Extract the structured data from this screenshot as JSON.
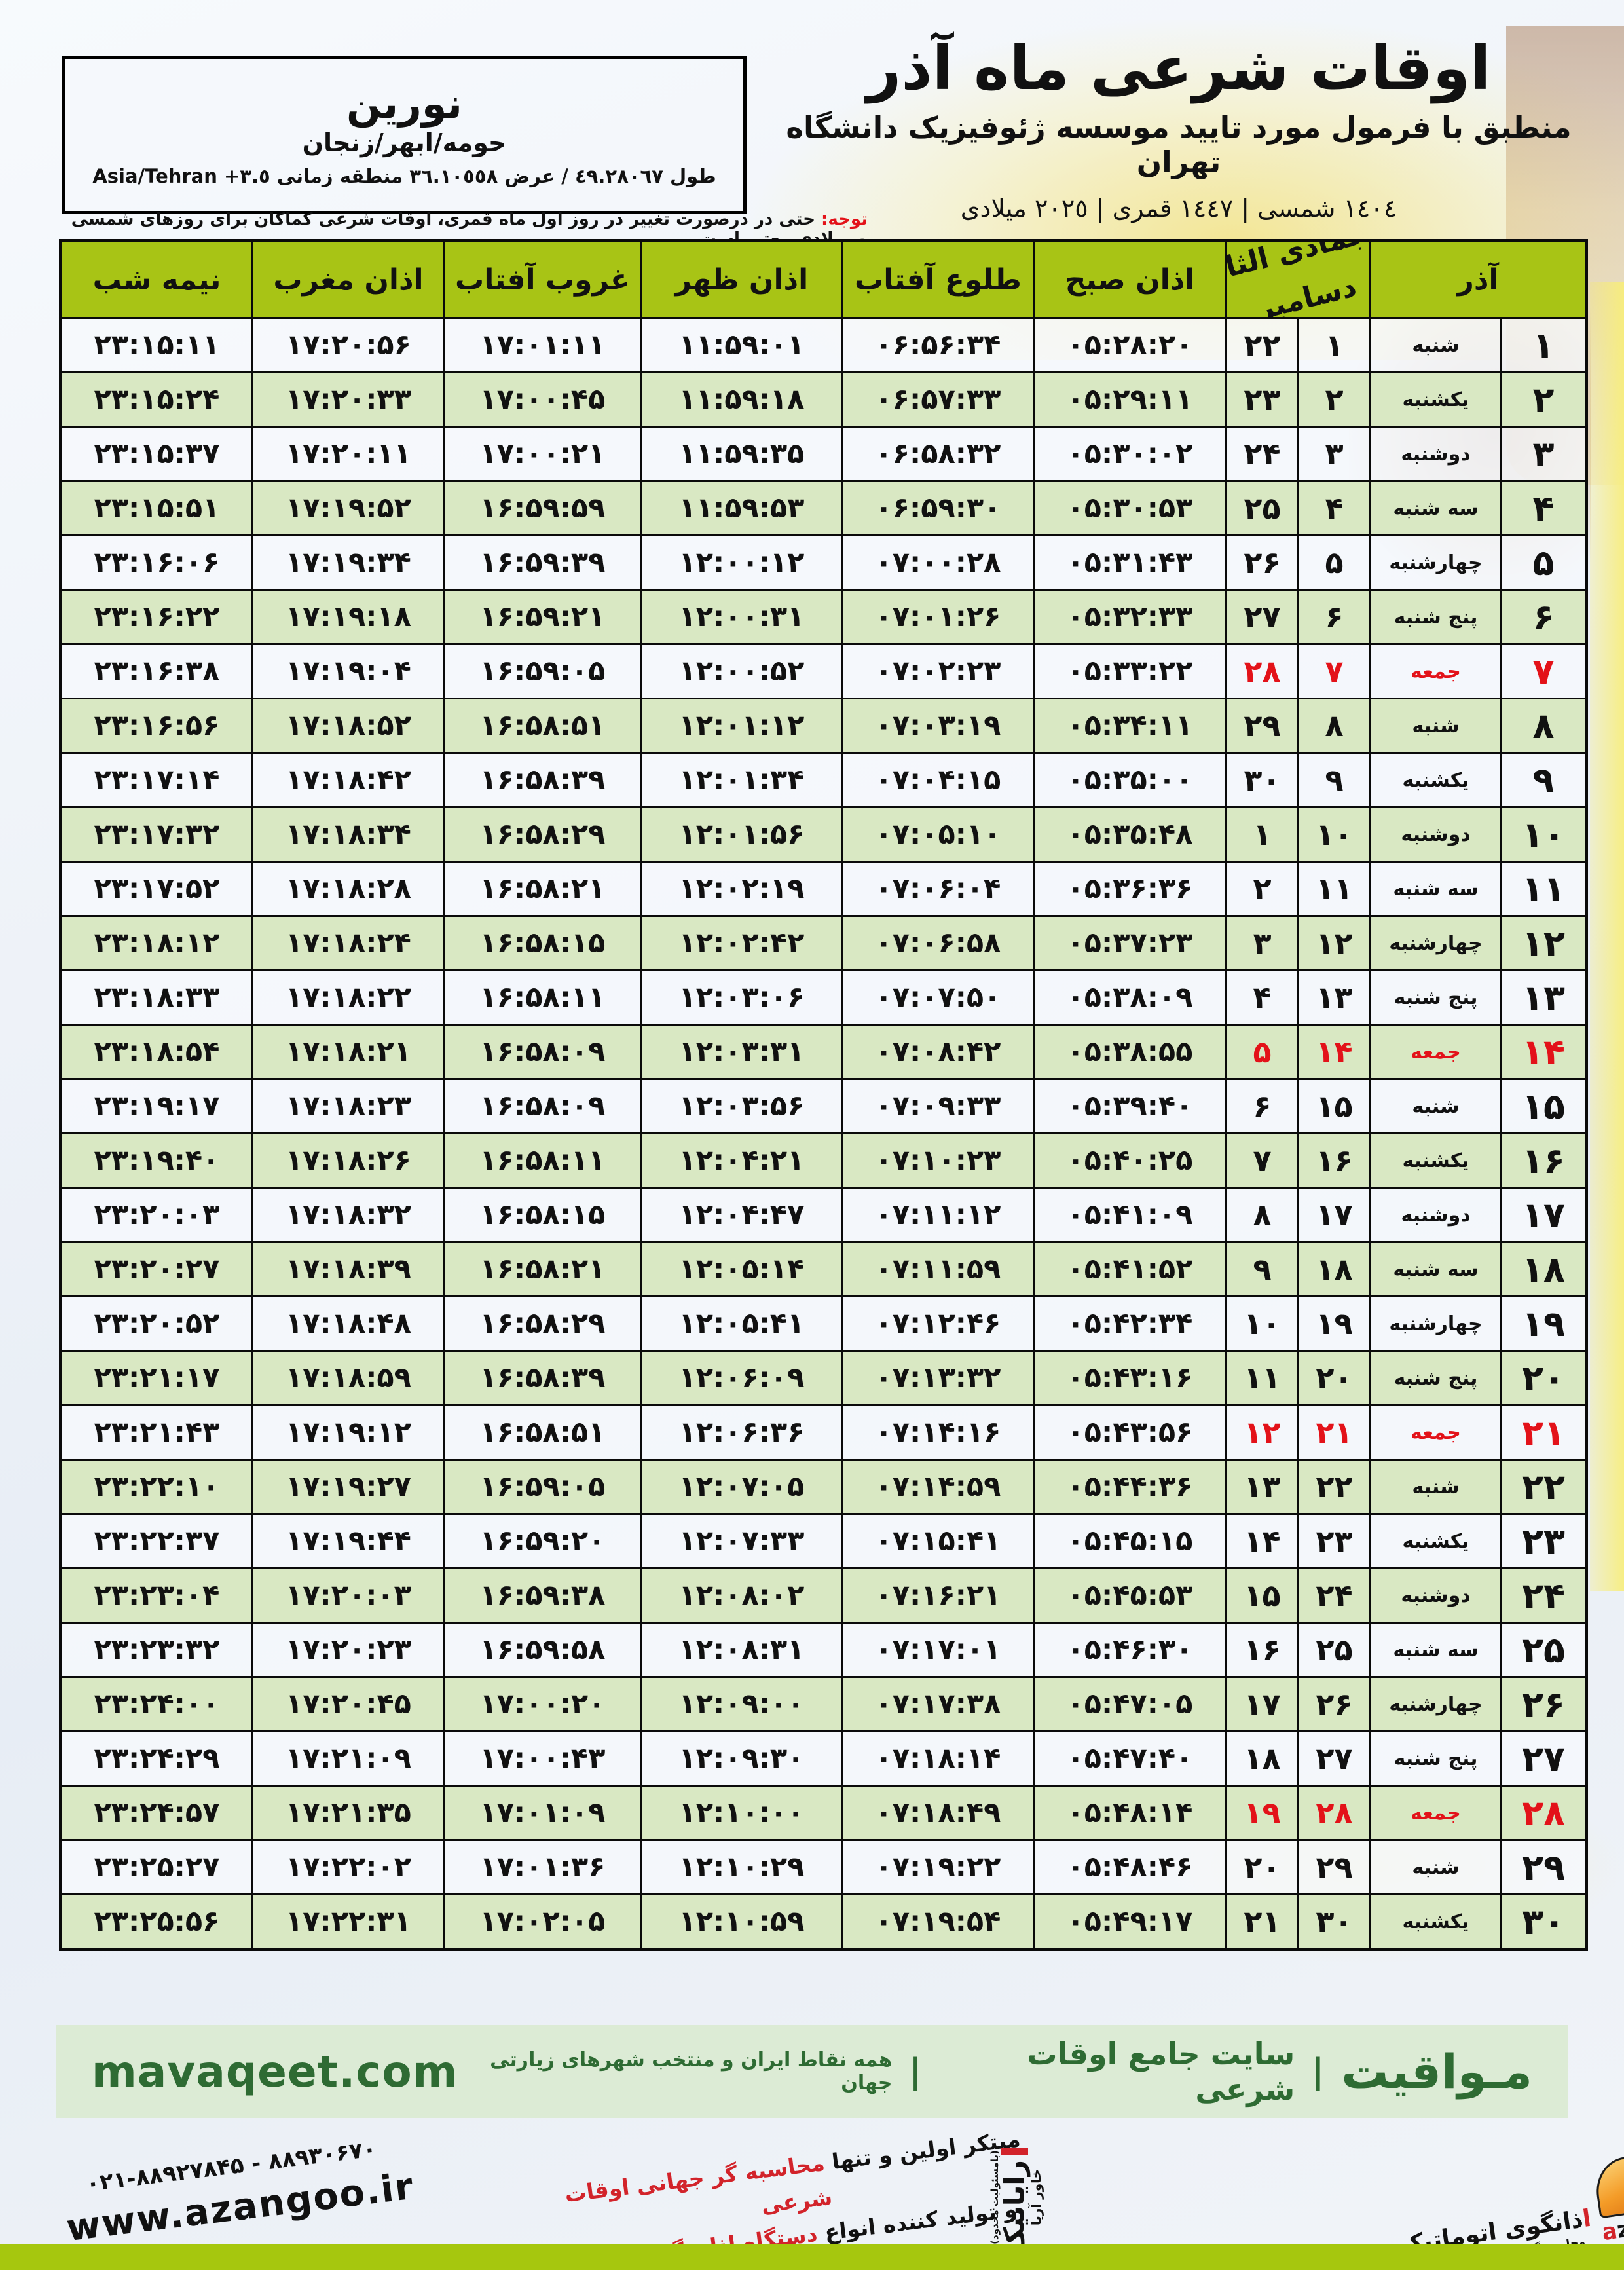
{
  "colors": {
    "header_green": "#a8c415",
    "row_green": "#d9e8c3",
    "holiday_red": "#e31219",
    "footer_bg": "#dcebd5",
    "footer_text_green": "#2e6b33",
    "bottom_bar_green": "#a6c70e",
    "azangoo_orange": "#f49c28",
    "slogan_red": "#d2232a"
  },
  "location_box": {
    "city": "نورین",
    "region": "حومه/ابهر/زنجان",
    "coords_fa": "طول ٤٩.٢٨٠٦٧ / عرض ٣٦.١٠٥٥٨ منطقه زمانی",
    "coords_tz": "Asia/Tehran +٣.٥"
  },
  "title": {
    "main": "اوقات شرعی ماه آذر",
    "subtitle": "منطبق با فرمول مورد تایید موسسه ژئوفیزیک دانشگاه تهران",
    "years": "١٤٠٤ شمسی | ١٤٤٧ قمری | ٢٠٢٥ میلادی"
  },
  "notice": {
    "label": "توجه:",
    "text": " حتی در درصورت تغییر در روز اول ماه قمری، اوقات شرعی کماکان برای روزهای شمسی و میلادی معتبر است."
  },
  "table": {
    "headers": {
      "month": "آذر",
      "lunar_line": "جمادی الثانی نوامبر",
      "greg_bottom": "دسامبر",
      "sobh": "اذان صبح",
      "tolu": "طلوع آفتاب",
      "zohr": "اذان ظهر",
      "ghorub": "غروب آفتاب",
      "maghreb": "اذان مغرب",
      "nimeshab": "نیمه شب"
    },
    "columns_order": [
      "day",
      "weekday",
      "lunar",
      "greg",
      "sobh",
      "tolu",
      "zohr",
      "ghorub",
      "maghreb",
      "nimeshab"
    ],
    "rows": [
      {
        "day": "۱",
        "weekday": "شنبه",
        "lunar": "۱",
        "greg": "۲۲",
        "sobh": "۰۵:۲۸:۲۰",
        "tolu": "۰۶:۵۶:۳۴",
        "zohr": "۱۱:۵۹:۰۱",
        "ghorub": "۱۷:۰۱:۱۱",
        "maghreb": "۱۷:۲۰:۵۶",
        "nimeshab": "۲۳:۱۵:۱۱",
        "holiday": false
      },
      {
        "day": "۲",
        "weekday": "یکشنبه",
        "lunar": "۲",
        "greg": "۲۳",
        "sobh": "۰۵:۲۹:۱۱",
        "tolu": "۰۶:۵۷:۳۳",
        "zohr": "۱۱:۵۹:۱۸",
        "ghorub": "۱۷:۰۰:۴۵",
        "maghreb": "۱۷:۲۰:۳۳",
        "nimeshab": "۲۳:۱۵:۲۴",
        "holiday": false
      },
      {
        "day": "۳",
        "weekday": "دوشنبه",
        "lunar": "۳",
        "greg": "۲۴",
        "sobh": "۰۵:۳۰:۰۲",
        "tolu": "۰۶:۵۸:۳۲",
        "zohr": "۱۱:۵۹:۳۵",
        "ghorub": "۱۷:۰۰:۲۱",
        "maghreb": "۱۷:۲۰:۱۱",
        "nimeshab": "۲۳:۱۵:۳۷",
        "holiday": false
      },
      {
        "day": "۴",
        "weekday": "سه شنبه",
        "lunar": "۴",
        "greg": "۲۵",
        "sobh": "۰۵:۳۰:۵۳",
        "tolu": "۰۶:۵۹:۳۰",
        "zohr": "۱۱:۵۹:۵۳",
        "ghorub": "۱۶:۵۹:۵۹",
        "maghreb": "۱۷:۱۹:۵۲",
        "nimeshab": "۲۳:۱۵:۵۱",
        "holiday": false
      },
      {
        "day": "۵",
        "weekday": "چهارشنبه",
        "lunar": "۵",
        "greg": "۲۶",
        "sobh": "۰۵:۳۱:۴۳",
        "tolu": "۰۷:۰۰:۲۸",
        "zohr": "۱۲:۰۰:۱۲",
        "ghorub": "۱۶:۵۹:۳۹",
        "maghreb": "۱۷:۱۹:۳۴",
        "nimeshab": "۲۳:۱۶:۰۶",
        "holiday": false
      },
      {
        "day": "۶",
        "weekday": "پنج شنبه",
        "lunar": "۶",
        "greg": "۲۷",
        "sobh": "۰۵:۳۲:۳۳",
        "tolu": "۰۷:۰۱:۲۶",
        "zohr": "۱۲:۰۰:۳۱",
        "ghorub": "۱۶:۵۹:۲۱",
        "maghreb": "۱۷:۱۹:۱۸",
        "nimeshab": "۲۳:۱۶:۲۲",
        "holiday": false
      },
      {
        "day": "۷",
        "weekday": "جمعه",
        "lunar": "۷",
        "greg": "۲۸",
        "sobh": "۰۵:۳۳:۲۲",
        "tolu": "۰۷:۰۲:۲۳",
        "zohr": "۱۲:۰۰:۵۲",
        "ghorub": "۱۶:۵۹:۰۵",
        "maghreb": "۱۷:۱۹:۰۴",
        "nimeshab": "۲۳:۱۶:۳۸",
        "holiday": true
      },
      {
        "day": "۸",
        "weekday": "شنبه",
        "lunar": "۸",
        "greg": "۲۹",
        "sobh": "۰۵:۳۴:۱۱",
        "tolu": "۰۷:۰۳:۱۹",
        "zohr": "۱۲:۰۱:۱۲",
        "ghorub": "۱۶:۵۸:۵۱",
        "maghreb": "۱۷:۱۸:۵۲",
        "nimeshab": "۲۳:۱۶:۵۶",
        "holiday": false
      },
      {
        "day": "۹",
        "weekday": "یکشنبه",
        "lunar": "۹",
        "greg": "۳۰",
        "sobh": "۰۵:۳۵:۰۰",
        "tolu": "۰۷:۰۴:۱۵",
        "zohr": "۱۲:۰۱:۳۴",
        "ghorub": "۱۶:۵۸:۳۹",
        "maghreb": "۱۷:۱۸:۴۲",
        "nimeshab": "۲۳:۱۷:۱۴",
        "holiday": false
      },
      {
        "day": "۱۰",
        "weekday": "دوشنبه",
        "lunar": "۱۰",
        "greg": "۱",
        "sobh": "۰۵:۳۵:۴۸",
        "tolu": "۰۷:۰۵:۱۰",
        "zohr": "۱۲:۰۱:۵۶",
        "ghorub": "۱۶:۵۸:۲۹",
        "maghreb": "۱۷:۱۸:۳۴",
        "nimeshab": "۲۳:۱۷:۳۲",
        "holiday": false
      },
      {
        "day": "۱۱",
        "weekday": "سه شنبه",
        "lunar": "۱۱",
        "greg": "۲",
        "sobh": "۰۵:۳۶:۳۶",
        "tolu": "۰۷:۰۶:۰۴",
        "zohr": "۱۲:۰۲:۱۹",
        "ghorub": "۱۶:۵۸:۲۱",
        "maghreb": "۱۷:۱۸:۲۸",
        "nimeshab": "۲۳:۱۷:۵۲",
        "holiday": false
      },
      {
        "day": "۱۲",
        "weekday": "چهارشنبه",
        "lunar": "۱۲",
        "greg": "۳",
        "sobh": "۰۵:۳۷:۲۳",
        "tolu": "۰۷:۰۶:۵۸",
        "zohr": "۱۲:۰۲:۴۲",
        "ghorub": "۱۶:۵۸:۱۵",
        "maghreb": "۱۷:۱۸:۲۴",
        "nimeshab": "۲۳:۱۸:۱۲",
        "holiday": false
      },
      {
        "day": "۱۳",
        "weekday": "پنج شنبه",
        "lunar": "۱۳",
        "greg": "۴",
        "sobh": "۰۵:۳۸:۰۹",
        "tolu": "۰۷:۰۷:۵۰",
        "zohr": "۱۲:۰۳:۰۶",
        "ghorub": "۱۶:۵۸:۱۱",
        "maghreb": "۱۷:۱۸:۲۲",
        "nimeshab": "۲۳:۱۸:۳۳",
        "holiday": false
      },
      {
        "day": "۱۴",
        "weekday": "جمعه",
        "lunar": "۱۴",
        "greg": "۵",
        "sobh": "۰۵:۳۸:۵۵",
        "tolu": "۰۷:۰۸:۴۲",
        "zohr": "۱۲:۰۳:۳۱",
        "ghorub": "۱۶:۵۸:۰۹",
        "maghreb": "۱۷:۱۸:۲۱",
        "nimeshab": "۲۳:۱۸:۵۴",
        "holiday": true
      },
      {
        "day": "۱۵",
        "weekday": "شنبه",
        "lunar": "۱۵",
        "greg": "۶",
        "sobh": "۰۵:۳۹:۴۰",
        "tolu": "۰۷:۰۹:۳۳",
        "zohr": "۱۲:۰۳:۵۶",
        "ghorub": "۱۶:۵۸:۰۹",
        "maghreb": "۱۷:۱۸:۲۳",
        "nimeshab": "۲۳:۱۹:۱۷",
        "holiday": false
      },
      {
        "day": "۱۶",
        "weekday": "یکشنبه",
        "lunar": "۱۶",
        "greg": "۷",
        "sobh": "۰۵:۴۰:۲۵",
        "tolu": "۰۷:۱۰:۲۳",
        "zohr": "۱۲:۰۴:۲۱",
        "ghorub": "۱۶:۵۸:۱۱",
        "maghreb": "۱۷:۱۸:۲۶",
        "nimeshab": "۲۳:۱۹:۴۰",
        "holiday": false
      },
      {
        "day": "۱۷",
        "weekday": "دوشنبه",
        "lunar": "۱۷",
        "greg": "۸",
        "sobh": "۰۵:۴۱:۰۹",
        "tolu": "۰۷:۱۱:۱۲",
        "zohr": "۱۲:۰۴:۴۷",
        "ghorub": "۱۶:۵۸:۱۵",
        "maghreb": "۱۷:۱۸:۳۲",
        "nimeshab": "۲۳:۲۰:۰۳",
        "holiday": false
      },
      {
        "day": "۱۸",
        "weekday": "سه شنبه",
        "lunar": "۱۸",
        "greg": "۹",
        "sobh": "۰۵:۴۱:۵۲",
        "tolu": "۰۷:۱۱:۵۹",
        "zohr": "۱۲:۰۵:۱۴",
        "ghorub": "۱۶:۵۸:۲۱",
        "maghreb": "۱۷:۱۸:۳۹",
        "nimeshab": "۲۳:۲۰:۲۷",
        "holiday": false
      },
      {
        "day": "۱۹",
        "weekday": "چهارشنبه",
        "lunar": "۱۹",
        "greg": "۱۰",
        "sobh": "۰۵:۴۲:۳۴",
        "tolu": "۰۷:۱۲:۴۶",
        "zohr": "۱۲:۰۵:۴۱",
        "ghorub": "۱۶:۵۸:۲۹",
        "maghreb": "۱۷:۱۸:۴۸",
        "nimeshab": "۲۳:۲۰:۵۲",
        "holiday": false
      },
      {
        "day": "۲۰",
        "weekday": "پنج شنبه",
        "lunar": "۲۰",
        "greg": "۱۱",
        "sobh": "۰۵:۴۳:۱۶",
        "tolu": "۰۷:۱۳:۳۲",
        "zohr": "۱۲:۰۶:۰۹",
        "ghorub": "۱۶:۵۸:۳۹",
        "maghreb": "۱۷:۱۸:۵۹",
        "nimeshab": "۲۳:۲۱:۱۷",
        "holiday": false
      },
      {
        "day": "۲۱",
        "weekday": "جمعه",
        "lunar": "۲۱",
        "greg": "۱۲",
        "sobh": "۰۵:۴۳:۵۶",
        "tolu": "۰۷:۱۴:۱۶",
        "zohr": "۱۲:۰۶:۳۶",
        "ghorub": "۱۶:۵۸:۵۱",
        "maghreb": "۱۷:۱۹:۱۲",
        "nimeshab": "۲۳:۲۱:۴۳",
        "holiday": true
      },
      {
        "day": "۲۲",
        "weekday": "شنبه",
        "lunar": "۲۲",
        "greg": "۱۳",
        "sobh": "۰۵:۴۴:۳۶",
        "tolu": "۰۷:۱۴:۵۹",
        "zohr": "۱۲:۰۷:۰۵",
        "ghorub": "۱۶:۵۹:۰۵",
        "maghreb": "۱۷:۱۹:۲۷",
        "nimeshab": "۲۳:۲۲:۱۰",
        "holiday": false
      },
      {
        "day": "۲۳",
        "weekday": "یکشنبه",
        "lunar": "۲۳",
        "greg": "۱۴",
        "sobh": "۰۵:۴۵:۱۵",
        "tolu": "۰۷:۱۵:۴۱",
        "zohr": "۱۲:۰۷:۳۳",
        "ghorub": "۱۶:۵۹:۲۰",
        "maghreb": "۱۷:۱۹:۴۴",
        "nimeshab": "۲۳:۲۲:۳۷",
        "holiday": false
      },
      {
        "day": "۲۴",
        "weekday": "دوشنبه",
        "lunar": "۲۴",
        "greg": "۱۵",
        "sobh": "۰۵:۴۵:۵۳",
        "tolu": "۰۷:۱۶:۲۱",
        "zohr": "۱۲:۰۸:۰۲",
        "ghorub": "۱۶:۵۹:۳۸",
        "maghreb": "۱۷:۲۰:۰۳",
        "nimeshab": "۲۳:۲۳:۰۴",
        "holiday": false
      },
      {
        "day": "۲۵",
        "weekday": "سه شنبه",
        "lunar": "۲۵",
        "greg": "۱۶",
        "sobh": "۰۵:۴۶:۳۰",
        "tolu": "۰۷:۱۷:۰۱",
        "zohr": "۱۲:۰۸:۳۱",
        "ghorub": "۱۶:۵۹:۵۸",
        "maghreb": "۱۷:۲۰:۲۳",
        "nimeshab": "۲۳:۲۳:۳۲",
        "holiday": false
      },
      {
        "day": "۲۶",
        "weekday": "چهارشنبه",
        "lunar": "۲۶",
        "greg": "۱۷",
        "sobh": "۰۵:۴۷:۰۵",
        "tolu": "۰۷:۱۷:۳۸",
        "zohr": "۱۲:۰۹:۰۰",
        "ghorub": "۱۷:۰۰:۲۰",
        "maghreb": "۱۷:۲۰:۴۵",
        "nimeshab": "۲۳:۲۴:۰۰",
        "holiday": false
      },
      {
        "day": "۲۷",
        "weekday": "پنج شنبه",
        "lunar": "۲۷",
        "greg": "۱۸",
        "sobh": "۰۵:۴۷:۴۰",
        "tolu": "۰۷:۱۸:۱۴",
        "zohr": "۱۲:۰۹:۳۰",
        "ghorub": "۱۷:۰۰:۴۳",
        "maghreb": "۱۷:۲۱:۰۹",
        "nimeshab": "۲۳:۲۴:۲۹",
        "holiday": false
      },
      {
        "day": "۲۸",
        "weekday": "جمعه",
        "lunar": "۲۸",
        "greg": "۱۹",
        "sobh": "۰۵:۴۸:۱۴",
        "tolu": "۰۷:۱۸:۴۹",
        "zohr": "۱۲:۱۰:۰۰",
        "ghorub": "۱۷:۰۱:۰۹",
        "maghreb": "۱۷:۲۱:۳۵",
        "nimeshab": "۲۳:۲۴:۵۷",
        "holiday": true
      },
      {
        "day": "۲۹",
        "weekday": "شنبه",
        "lunar": "۲۹",
        "greg": "۲۰",
        "sobh": "۰۵:۴۸:۴۶",
        "tolu": "۰۷:۱۹:۲۲",
        "zohr": "۱۲:۱۰:۲۹",
        "ghorub": "۱۷:۰۱:۳۶",
        "maghreb": "۱۷:۲۲:۰۲",
        "nimeshab": "۲۳:۲۵:۲۷",
        "holiday": false
      },
      {
        "day": "۳۰",
        "weekday": "یکشنبه",
        "lunar": "۳۰",
        "greg": "۲۱",
        "sobh": "۰۵:۴۹:۱۷",
        "tolu": "۰۷:۱۹:۵۴",
        "zohr": "۱۲:۱۰:۵۹",
        "ghorub": "۱۷:۰۲:۰۵",
        "maghreb": "۱۷:۲۲:۳۱",
        "nimeshab": "۲۳:۲۵:۵۶",
        "holiday": false
      }
    ]
  },
  "footer": {
    "brand": "مـواقیت",
    "sep": "|",
    "site_desc": "سایت جامع اوقات شرعی",
    "coverage": "همه نقاط ایران و منتخب شهرهای زیارتی جهان",
    "domain": "mavaqeet.com"
  },
  "bottom": {
    "phones": "۰۲۱-۸۸۹۲۷۸۴۵ - ۸۸۹۳۰۶۷۰",
    "site": "www.azangoo.ir",
    "slogan1_black": "مبتکر اولین و تنها ",
    "slogan1_red": "محاسبه گر جهانی اوقات شرعی",
    "slogan2_black": "و تولید کننده انواع ",
    "slogan2_red": "دستگاه اذان گوی تمام خودکار ماهواره ای",
    "rayanik_tiny": "(بامسئولیت محدود)",
    "rayanik_main": "رایانیک",
    "rayanik_sub": "خاور آریا",
    "azangoo_fa_red": "ا",
    "azangoo_fa_rest": "ذانگوی اتوماتیک",
    "azangoo_en_red": "a",
    "azangoo_en_rest": "zangoo",
    "azangoo_tag": "محاسبه گر جهانی اوقات شرعی"
  }
}
